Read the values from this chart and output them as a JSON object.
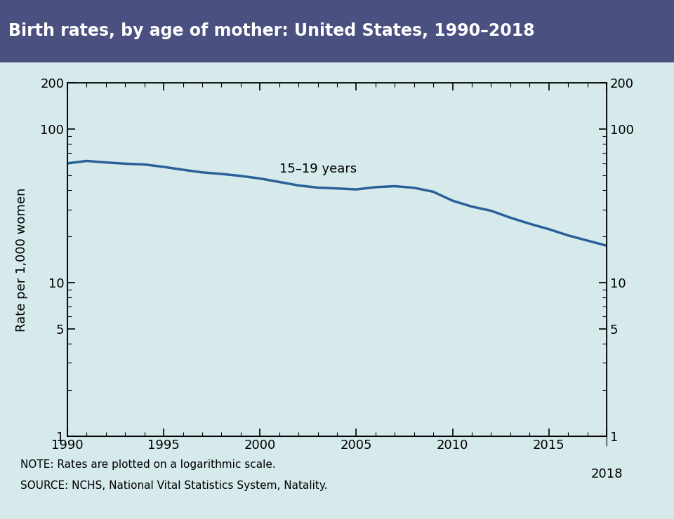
{
  "title": "Birth rates, by age of mother: United States, 1990–2018",
  "title_bg_color": "#4a5080",
  "title_text_color": "#ffffff",
  "bg_color": "#d6eaec",
  "ylabel": "Rate per 1,000 women",
  "note_line1": "NOTE: Rates are plotted on a logarithmic scale.",
  "note_line2": "SOURCE: NCHS, National Vital Statistics System, Natality.",
  "line_color": "#2a6099",
  "line_label": "15–19 years",
  "years": [
    1990,
    1991,
    1992,
    1993,
    1994,
    1995,
    1996,
    1997,
    1998,
    1999,
    2000,
    2001,
    2002,
    2003,
    2004,
    2005,
    2006,
    2007,
    2008,
    2009,
    2010,
    2011,
    2012,
    2013,
    2014,
    2015,
    2016,
    2017,
    2018
  ],
  "rates_15_19": [
    59.9,
    62.1,
    60.7,
    59.6,
    58.9,
    56.8,
    54.4,
    52.3,
    51.1,
    49.6,
    47.7,
    45.3,
    43.0,
    41.6,
    41.1,
    40.5,
    41.9,
    42.5,
    41.5,
    39.1,
    34.2,
    31.3,
    29.4,
    26.5,
    24.2,
    22.3,
    20.3,
    18.8,
    17.4
  ],
  "ylim_min": 1,
  "ylim_max": 200,
  "yticks": [
    1,
    5,
    10,
    100,
    200
  ],
  "xlim_min": 1990,
  "xlim_max": 2018,
  "xticks": [
    1990,
    1995,
    2000,
    2005,
    2010,
    2015,
    2018
  ]
}
